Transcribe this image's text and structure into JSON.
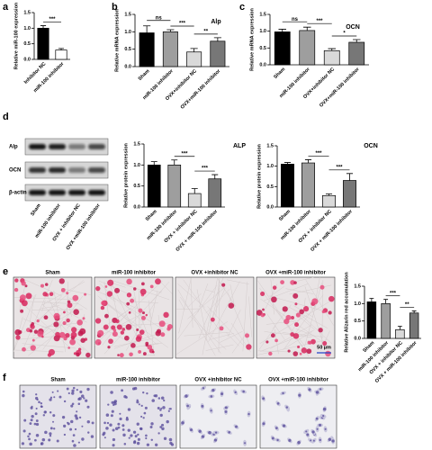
{
  "panels": [
    "a",
    "b",
    "c",
    "d",
    "e",
    "f"
  ],
  "chart_data": [
    {
      "type": "bar",
      "y_label": "Relative miR-100 expression",
      "categories": [
        "Inhibitor NC",
        "miR-100 inhibitor"
      ],
      "values": [
        1.0,
        0.3
      ],
      "errors": [
        0.08,
        0.05
      ],
      "colors": [
        "#000000",
        "#ffffff"
      ],
      "ylim": [
        0,
        1.5
      ],
      "yticks": [
        {
          "value": 0,
          "label": "0.0"
        },
        0.5,
        {
          "value": 1,
          "label": "1.0"
        },
        1.5
      ],
      "annotations": [
        "***"
      ]
    },
    {
      "type": "bar",
      "title": "Alp",
      "y_label": "Relative mRNA expression",
      "categories": [
        "Sham",
        "miR-100 inhibitor",
        "OVX+inhibitor NC",
        "OVX+miR-100 inhibitor"
      ],
      "values": [
        0.97,
        1.0,
        0.42,
        0.73
      ],
      "errors": [
        0.2,
        0.06,
        0.1,
        0.1
      ],
      "colors": [
        "#000000",
        "#9e9e9e",
        "#d9d9d9",
        "#777777"
      ],
      "ylim": [
        0,
        1.5
      ],
      "yticks": [
        {
          "value": 0,
          "label": "0.0"
        },
        0.5,
        {
          "value": 1,
          "label": "1.0"
        },
        1.5
      ],
      "annotations": [
        "ns",
        "***",
        "**"
      ]
    },
    {
      "type": "bar",
      "title": "OCN",
      "y_label": "Relative mRNA expression",
      "categories": [
        "Sham",
        "miR-100 inhibitor",
        "OVX+inhibitor NC",
        "OVX+miR-100 inhibitor"
      ],
      "values": [
        0.98,
        1.02,
        0.42,
        0.67
      ],
      "errors": [
        0.08,
        0.1,
        0.06,
        0.08
      ],
      "colors": [
        "#000000",
        "#9e9e9e",
        "#d9d9d9",
        "#777777"
      ],
      "ylim": [
        0,
        1.5
      ],
      "yticks": [
        {
          "value": 0,
          "label": "0.0"
        },
        0.5,
        {
          "value": 1,
          "label": "1.0"
        },
        1.5
      ],
      "annotations": [
        "ns",
        "***",
        "*"
      ]
    },
    {
      "type": "bar",
      "title": "ALP",
      "y_label": "Relative protein expression",
      "categories": [
        "Sham",
        "miR-100 inhibitor",
        "OVX + inhibitor NC",
        "OVX + miR-100 inhibitor"
      ],
      "values": [
        1.0,
        1.0,
        0.32,
        0.67
      ],
      "errors": [
        0.08,
        0.12,
        0.12,
        0.1
      ],
      "colors": [
        "#000000",
        "#9e9e9e",
        "#d9d9d9",
        "#777777"
      ],
      "ylim": [
        0,
        1.5
      ],
      "yticks": [
        {
          "value": 0,
          "label": "0.0"
        },
        0.5,
        {
          "value": 1,
          "label": "1.0"
        },
        1.5
      ],
      "annotations": [
        "***",
        "***"
      ]
    },
    {
      "type": "bar",
      "title": "OCN",
      "y_label": "Relative protein expression",
      "categories": [
        "Sham",
        "miR-100 inhibitor",
        "OVX + inhibitor NC",
        "OVX + miR-100 inhibitor"
      ],
      "values": [
        1.05,
        1.08,
        0.28,
        0.65
      ],
      "errors": [
        0.04,
        0.08,
        0.04,
        0.17
      ],
      "colors": [
        "#000000",
        "#9e9e9e",
        "#d9d9d9",
        "#777777"
      ],
      "ylim": [
        0,
        1.5
      ],
      "yticks": [
        {
          "value": 0,
          "label": "0.0"
        },
        0.5,
        {
          "value": 1,
          "label": "1.0"
        },
        1.5
      ],
      "annotations": [
        "***",
        "***"
      ]
    },
    {
      "type": "bar",
      "y_label": "Relative Alizarin red accumulation",
      "categories": [
        "Sham",
        "miR-100 inhibitor",
        "OVX + inhibitor NC",
        "OVX + miR-100 inhibitor"
      ],
      "values": [
        1.05,
        1.0,
        0.25,
        0.73
      ],
      "errors": [
        0.1,
        0.12,
        0.1,
        0.06
      ],
      "colors": [
        "#000000",
        "#9e9e9e",
        "#d9d9d9",
        "#777777"
      ],
      "ylim": [
        0,
        1.5
      ],
      "yticks": [
        {
          "value": 0,
          "label": "0.0"
        },
        0.5,
        {
          "value": 1,
          "label": "1.0"
        },
        1.5
      ],
      "annotations": [
        "***",
        "**"
      ]
    }
  ],
  "blot": {
    "rows": [
      "Alp",
      "OCN",
      "β-actin"
    ],
    "lanes": [
      "Sham",
      "miR-100 inhibitor",
      "OVX + inhibitor NC",
      "OVX +miR-100 inhibitor"
    ]
  },
  "stain_images": {
    "titles": [
      "Sham",
      "miR-100 inhibitor",
      "OVX +inhibitor NC",
      "OVX +miR-100 inhibitor"
    ],
    "scale_bar": "50 µm"
  },
  "he_images": {
    "titles": [
      "Sham",
      "miR-100 inhibitor",
      "OVX +inhibitor NC",
      "OVX +miR-100 inhibitor"
    ]
  }
}
